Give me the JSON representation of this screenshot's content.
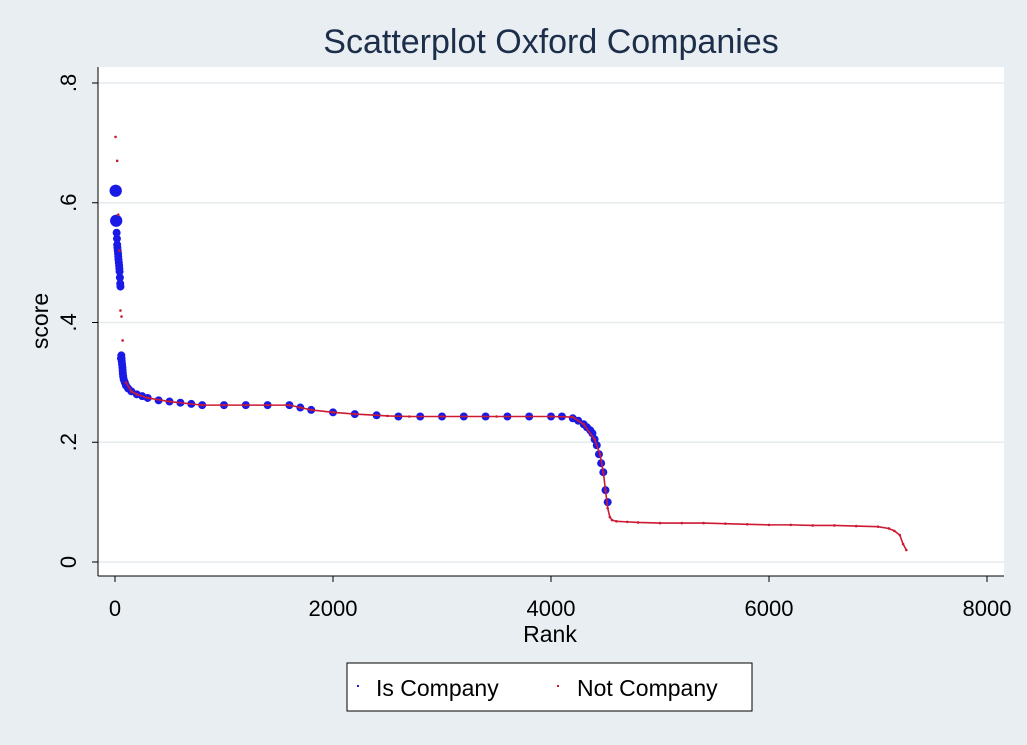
{
  "chart_data": {
    "type": "scatter",
    "title": "Scatterplot Oxford Companies",
    "xlabel": "Rank",
    "ylabel": "score",
    "xlim": [
      -100,
      8000
    ],
    "ylim": [
      0,
      0.8
    ],
    "xticks": [
      0,
      2000,
      4000,
      6000,
      8000
    ],
    "xtick_labels": [
      "0",
      "2000",
      "4000",
      "6000",
      "8000"
    ],
    "yticks": [
      0,
      0.2,
      0.4,
      0.6,
      0.8
    ],
    "ytick_labels": [
      "0",
      ".2",
      ".4",
      ".6",
      ".8"
    ],
    "grid": "horizontal",
    "legend_position": "bottom",
    "series": [
      {
        "name": "Is Company",
        "color": "#1a1ae6",
        "marker": "large-circle",
        "x": [
          5,
          8,
          10,
          12,
          15,
          18,
          20,
          22,
          25,
          28,
          30,
          32,
          35,
          38,
          40,
          42,
          45,
          48,
          50,
          55,
          58,
          60,
          62,
          65,
          68,
          70,
          72,
          75,
          80,
          90,
          100,
          120,
          150,
          200,
          250,
          300,
          400,
          500,
          600,
          700,
          800,
          1000,
          1200,
          1400,
          1600,
          1700,
          1800,
          2000,
          2200,
          2400,
          2600,
          2800,
          3000,
          3200,
          3400,
          3600,
          3800,
          4000,
          4100,
          4200,
          4250,
          4300,
          4330,
          4360,
          4380,
          4400,
          4420,
          4440,
          4460,
          4480,
          4500,
          4520
        ],
        "y": [
          0.62,
          0.62,
          0.57,
          0.57,
          0.55,
          0.54,
          0.53,
          0.525,
          0.52,
          0.515,
          0.51,
          0.505,
          0.5,
          0.495,
          0.49,
          0.485,
          0.475,
          0.465,
          0.46,
          0.34,
          0.345,
          0.34,
          0.335,
          0.33,
          0.325,
          0.32,
          0.315,
          0.31,
          0.305,
          0.3,
          0.295,
          0.29,
          0.285,
          0.28,
          0.277,
          0.274,
          0.27,
          0.268,
          0.266,
          0.264,
          0.262,
          0.262,
          0.262,
          0.262,
          0.262,
          0.258,
          0.254,
          0.25,
          0.247,
          0.245,
          0.243,
          0.243,
          0.243,
          0.243,
          0.243,
          0.243,
          0.243,
          0.243,
          0.243,
          0.24,
          0.236,
          0.23,
          0.225,
          0.22,
          0.215,
          0.205,
          0.195,
          0.18,
          0.165,
          0.15,
          0.12,
          0.1
        ]
      },
      {
        "name": "Not Company",
        "color": "#cc1a33",
        "marker": "tiny-dot",
        "x": [
          5,
          20,
          30,
          40,
          50,
          60,
          70,
          100,
          150,
          200,
          300,
          500,
          800,
          1000,
          1200,
          1400,
          1600,
          1700,
          1800,
          2000,
          2200,
          2500,
          2700,
          3000,
          3500,
          4000,
          4200,
          4300,
          4400,
          4450,
          4480,
          4500,
          4520,
          4540,
          4560,
          4600,
          4700,
          4800,
          5000,
          5200,
          5400,
          5600,
          5800,
          6000,
          6200,
          6400,
          6600,
          6800,
          7000,
          7100,
          7150,
          7200,
          7230,
          7260
        ],
        "y": [
          0.71,
          0.67,
          0.58,
          0.52,
          0.42,
          0.41,
          0.37,
          0.3,
          0.285,
          0.28,
          0.274,
          0.268,
          0.262,
          0.262,
          0.262,
          0.262,
          0.262,
          0.258,
          0.254,
          0.25,
          0.247,
          0.244,
          0.243,
          0.243,
          0.243,
          0.243,
          0.242,
          0.23,
          0.205,
          0.18,
          0.15,
          0.12,
          0.09,
          0.075,
          0.07,
          0.068,
          0.067,
          0.066,
          0.065,
          0.065,
          0.065,
          0.064,
          0.063,
          0.062,
          0.062,
          0.061,
          0.061,
          0.06,
          0.059,
          0.056,
          0.052,
          0.045,
          0.03,
          0.02
        ]
      }
    ]
  },
  "legend": {
    "items": [
      {
        "label": "Is Company",
        "color": "#1a1ae6"
      },
      {
        "label": "Not Company",
        "color": "#cc1a33"
      }
    ]
  }
}
